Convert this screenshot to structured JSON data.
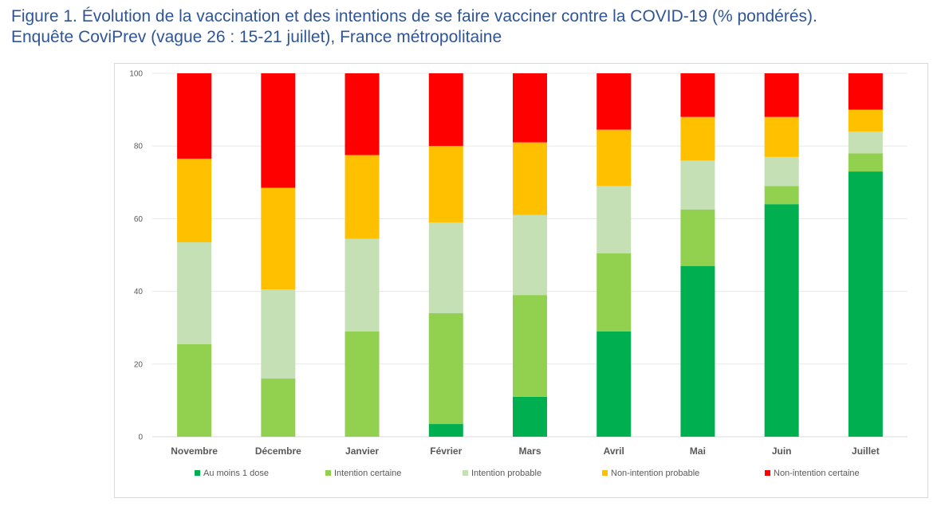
{
  "figure": {
    "title_line1": "Figure 1.  Évolution de la vaccination et des intentions de se faire vacciner contre la COVID-19 (% pondérés).",
    "title_line2": "Enquête CoviPrev (vague 26 : 15-21 juillet), France métropolitaine"
  },
  "chart_data": {
    "type": "bar",
    "stacked": true,
    "categories": [
      "Novembre",
      "Décembre",
      "Janvier",
      "Février",
      "Mars",
      "Avril",
      "Mai",
      "Juin",
      "Juillet"
    ],
    "series": [
      {
        "name": "Au moins 1 dose",
        "color": "#00B050",
        "values": [
          0,
          0,
          0,
          3.5,
          11,
          29,
          47,
          64,
          73
        ]
      },
      {
        "name": "Intention certaine",
        "color": "#92D050",
        "values": [
          25.5,
          16,
          29,
          30.5,
          28,
          21.5,
          15.5,
          5,
          5
        ]
      },
      {
        "name": "Intention probable",
        "color": "#C5E0B4",
        "values": [
          28,
          24.5,
          25.5,
          25,
          22,
          18.5,
          13.5,
          8,
          6
        ]
      },
      {
        "name": "Non-intention probable",
        "color": "#FFC000",
        "values": [
          23,
          28,
          23,
          21,
          20,
          15.5,
          12,
          11,
          6
        ]
      },
      {
        "name": "Non-intention certaine",
        "color": "#FF0000",
        "values": [
          23.5,
          31.5,
          22.5,
          20,
          19,
          15.5,
          12,
          12,
          10
        ]
      }
    ],
    "yticks": [
      "0",
      "20",
      "40",
      "60",
      "80",
      "100"
    ],
    "ylim": [
      0,
      100
    ],
    "grid": true,
    "legend_position": "bottom"
  }
}
